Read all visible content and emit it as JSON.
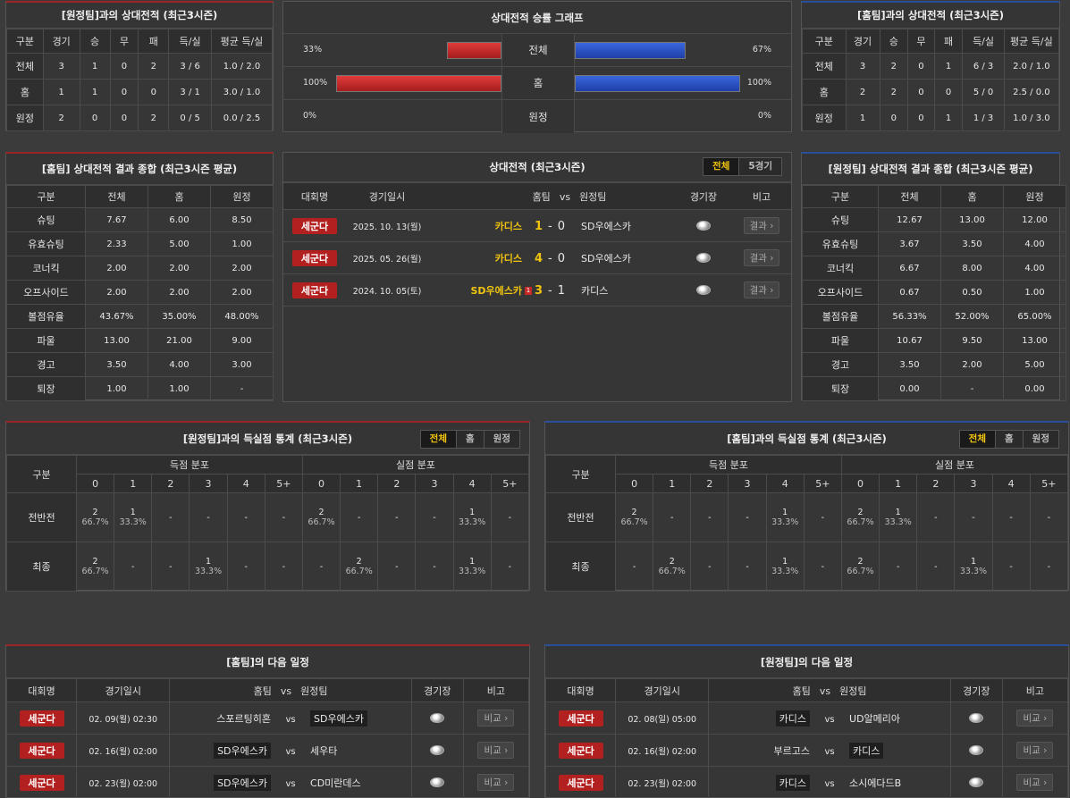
{
  "h2h_away": {
    "title": "[원정팀]과의 상대전적 (최근3시즌)",
    "headers": [
      "구분",
      "경기",
      "승",
      "무",
      "패",
      "득/실",
      "평균 득/실"
    ],
    "rows": [
      [
        "전체",
        "3",
        "1",
        "0",
        "2",
        "3 / 6",
        "1.0 / 2.0"
      ],
      [
        "홈",
        "1",
        "1",
        "0",
        "0",
        "3 / 1",
        "3.0 / 1.0"
      ],
      [
        "원정",
        "2",
        "0",
        "0",
        "2",
        "0 / 5",
        "0.0 / 2.5"
      ]
    ]
  },
  "graph": {
    "title": "상대전적 승률 그래프",
    "rows": [
      {
        "label": "전체",
        "left": "33%",
        "right": "67%",
        "left_val": 0.33,
        "right_val": 0.67
      },
      {
        "label": "홈",
        "left": "100%",
        "right": "100%",
        "left_val": 1.0,
        "right_val": 1.0
      },
      {
        "label": "원정",
        "left": "0%",
        "right": "0%",
        "left_val": 0.0,
        "right_val": 0.0
      }
    ]
  },
  "h2h_home": {
    "title": "[홈팀]과의 상대전적 (최근3시즌)",
    "headers": [
      "구분",
      "경기",
      "승",
      "무",
      "패",
      "득/실",
      "평균 득/실"
    ],
    "rows": [
      [
        "전체",
        "3",
        "2",
        "0",
        "1",
        "6 / 3",
        "2.0 / 1.0"
      ],
      [
        "홈",
        "2",
        "2",
        "0",
        "0",
        "5 / 0",
        "2.5 / 0.0"
      ],
      [
        "원정",
        "1",
        "0",
        "0",
        "1",
        "1 / 3",
        "1.0 / 3.0"
      ]
    ]
  },
  "summary_home": {
    "title": "[홈팀] 상대전적 결과 종합 (최근3시즌 평균)",
    "headers": [
      "구분",
      "전체",
      "홈",
      "원정"
    ],
    "rows": [
      [
        "슈팅",
        "7.67",
        "6.00",
        "8.50"
      ],
      [
        "유효슈팅",
        "2.33",
        "5.00",
        "1.00"
      ],
      [
        "코너킥",
        "2.00",
        "2.00",
        "2.00"
      ],
      [
        "오프사이드",
        "2.00",
        "2.00",
        "2.00"
      ],
      [
        "볼점유율",
        "43.67%",
        "35.00%",
        "48.00%"
      ],
      [
        "파울",
        "13.00",
        "21.00",
        "9.00"
      ],
      [
        "경고",
        "3.50",
        "4.00",
        "3.00"
      ],
      [
        "퇴장",
        "1.00",
        "1.00",
        "-"
      ]
    ]
  },
  "h2h_list": {
    "title": "상대전적 (최근3시즌)",
    "tabs": [
      "전체",
      "5경기"
    ],
    "headers": {
      "league": "대회명",
      "date": "경기일시",
      "home": "홈팀",
      "vs": "vs",
      "away": "원정팀",
      "stadium": "경기장",
      "note": "비고"
    },
    "rows": [
      {
        "league": "세군다",
        "date": "2025. 10. 13(월)",
        "home": "카디스",
        "hs": "1",
        "dash": "-",
        "as": "0",
        "away": "SD우에스카",
        "btn": "결과",
        "red": ""
      },
      {
        "league": "세군다",
        "date": "2025. 05. 26(월)",
        "home": "카디스",
        "hs": "4",
        "dash": "-",
        "as": "0",
        "away": "SD우에스카",
        "btn": "결과",
        "red": ""
      },
      {
        "league": "세군다",
        "date": "2024. 10. 05(토)",
        "home": "SD우에스카",
        "hs": "3",
        "dash": "-",
        "as": "1",
        "away": "카디스",
        "btn": "결과",
        "red": "1"
      }
    ]
  },
  "summary_away": {
    "title": "[원정팀] 상대전적 결과 종합 (최근3시즌 평균)",
    "headers": [
      "구분",
      "전체",
      "홈",
      "원정"
    ],
    "rows": [
      [
        "슈팅",
        "12.67",
        "13.00",
        "12.00"
      ],
      [
        "유효슈팅",
        "3.67",
        "3.50",
        "4.00"
      ],
      [
        "코너킥",
        "6.67",
        "8.00",
        "4.00"
      ],
      [
        "오프사이드",
        "0.67",
        "0.50",
        "1.00"
      ],
      [
        "볼점유율",
        "56.33%",
        "52.00%",
        "65.00%"
      ],
      [
        "파울",
        "10.67",
        "9.50",
        "13.00"
      ],
      [
        "경고",
        "3.50",
        "2.00",
        "5.00"
      ],
      [
        "퇴장",
        "0.00",
        "-",
        "0.00"
      ]
    ]
  },
  "goals_away": {
    "title": "[원정팀]과의 득실점 통계 (최근3시즌)",
    "tabs": [
      "전체",
      "홈",
      "원정"
    ],
    "gubun": "구분",
    "scored": "득점 분포",
    "conceded": "실점 분포",
    "cols": [
      "0",
      "1",
      "2",
      "3",
      "4",
      "5+"
    ],
    "rows": [
      {
        "label": "전반전",
        "cells": [
          [
            "2",
            "66.7%"
          ],
          [
            "1",
            "33.3%"
          ],
          [
            "-",
            ""
          ],
          [
            "-",
            ""
          ],
          [
            "-",
            ""
          ],
          [
            "-",
            ""
          ],
          [
            "2",
            "66.7%"
          ],
          [
            "-",
            ""
          ],
          [
            "-",
            ""
          ],
          [
            "-",
            ""
          ],
          [
            "1",
            "33.3%"
          ],
          [
            "-",
            ""
          ]
        ]
      },
      {
        "label": "최종",
        "cells": [
          [
            "2",
            "66.7%"
          ],
          [
            "-",
            ""
          ],
          [
            "-",
            ""
          ],
          [
            "1",
            "33.3%"
          ],
          [
            "-",
            ""
          ],
          [
            "-",
            ""
          ],
          [
            "-",
            ""
          ],
          [
            "2",
            "66.7%"
          ],
          [
            "-",
            ""
          ],
          [
            "-",
            ""
          ],
          [
            "1",
            "33.3%"
          ],
          [
            "-",
            ""
          ]
        ]
      }
    ]
  },
  "goals_home": {
    "title": "[홈팀]과의 득실점 통계 (최근3시즌)",
    "tabs": [
      "전체",
      "홈",
      "원정"
    ],
    "gubun": "구분",
    "scored": "득점 분포",
    "conceded": "실점 분포",
    "cols": [
      "0",
      "1",
      "2",
      "3",
      "4",
      "5+"
    ],
    "rows": [
      {
        "label": "전반전",
        "cells": [
          [
            "2",
            "66.7%"
          ],
          [
            "-",
            ""
          ],
          [
            "-",
            ""
          ],
          [
            "-",
            ""
          ],
          [
            "1",
            "33.3%"
          ],
          [
            "-",
            ""
          ],
          [
            "2",
            "66.7%"
          ],
          [
            "1",
            "33.3%"
          ],
          [
            "-",
            ""
          ],
          [
            "-",
            ""
          ],
          [
            "-",
            ""
          ],
          [
            "-",
            ""
          ]
        ]
      },
      {
        "label": "최종",
        "cells": [
          [
            "-",
            ""
          ],
          [
            "2",
            "66.7%"
          ],
          [
            "-",
            ""
          ],
          [
            "-",
            ""
          ],
          [
            "1",
            "33.3%"
          ],
          [
            "-",
            ""
          ],
          [
            "2",
            "66.7%"
          ],
          [
            "-",
            ""
          ],
          [
            "-",
            ""
          ],
          [
            "1",
            "33.3%"
          ],
          [
            "-",
            ""
          ],
          [
            "-",
            ""
          ]
        ]
      }
    ]
  },
  "next_home": {
    "title": "[홈팀]의 다음 일정",
    "headers": {
      "league": "대회명",
      "date": "경기일시",
      "home": "홈팀",
      "vs": "vs",
      "away": "원정팀",
      "stadium": "경기장",
      "note": "비고"
    },
    "rows": [
      {
        "league": "세군다",
        "date": "02. 09(월) 02:30",
        "home": "스포르팅히혼",
        "away": "SD우에스카",
        "hl": "away",
        "btn": "비교"
      },
      {
        "league": "세군다",
        "date": "02. 16(월) 02:00",
        "home": "SD우에스카",
        "away": "세우타",
        "hl": "home",
        "btn": "비교"
      },
      {
        "league": "세군다",
        "date": "02. 23(월) 02:00",
        "home": "SD우에스카",
        "away": "CD미란데스",
        "hl": "home",
        "btn": "비교"
      }
    ]
  },
  "next_away": {
    "title": "[원정팀]의 다음 일정",
    "headers": {
      "league": "대회명",
      "date": "경기일시",
      "home": "홈팀",
      "vs": "vs",
      "away": "원정팀",
      "stadium": "경기장",
      "note": "비고"
    },
    "rows": [
      {
        "league": "세군다",
        "date": "02. 08(일) 05:00",
        "home": "카디스",
        "away": "UD알메리아",
        "hl": "home",
        "btn": "비교"
      },
      {
        "league": "세군다",
        "date": "02. 16(월) 02:00",
        "home": "부르고스",
        "away": "카디스",
        "hl": "away",
        "btn": "비교"
      },
      {
        "league": "세군다",
        "date": "02. 23(월) 02:00",
        "home": "카디스",
        "away": "소시에다드B",
        "hl": "home",
        "btn": "비교"
      }
    ]
  },
  "colors": {
    "red": "#b32020",
    "blue": "#2a4f99",
    "gold": "#f1c40f"
  },
  "icons": {
    "stadium": "stadium-icon",
    "arrow": "chevron-right-icon"
  }
}
